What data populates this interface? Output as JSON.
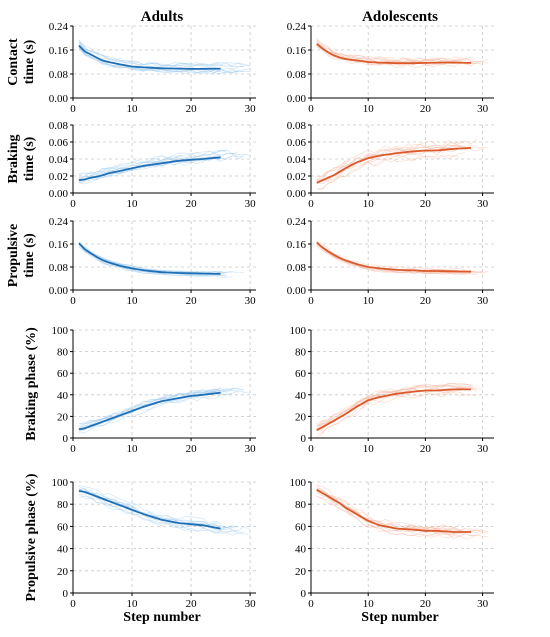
{
  "figure": {
    "columns": [
      "Adults",
      "Adolescents"
    ],
    "xlabel": "Step number",
    "rows": [
      {
        "ylabel_lines": [
          "Contact",
          "time (s)"
        ]
      },
      {
        "ylabel_lines": [
          "Braking",
          "time (s)"
        ]
      },
      {
        "ylabel_lines": [
          "Propulsive",
          "time (s)"
        ]
      },
      {
        "ylabel_lines": [
          "Braking phase (%)"
        ]
      },
      {
        "ylabel_lines": [
          "Propulsive phase (%)"
        ]
      }
    ]
  },
  "colors": {
    "adults_mean": "#1f6fb5",
    "adults_trials": "#9ecbec",
    "adolescents_mean": "#d95a2b",
    "adolescents_trials": "#f4b7a0"
  },
  "chart_data": [
    {
      "type": "line",
      "panel": "contact-adults",
      "xlabel": "",
      "ylabel": "Contact time (s)",
      "xlim": [
        0,
        31
      ],
      "ylim": [
        0,
        0.24
      ],
      "xticks": [
        0,
        10,
        20,
        30
      ],
      "yticks": [
        0.0,
        0.08,
        0.16,
        0.24
      ],
      "tick_decimals": 2,
      "grid": true,
      "x": [
        1,
        2,
        3,
        4,
        5,
        6,
        8,
        10,
        12,
        15,
        18,
        20,
        22,
        25
      ],
      "mean": [
        0.175,
        0.155,
        0.145,
        0.135,
        0.125,
        0.12,
        0.112,
        0.105,
        0.102,
        0.099,
        0.098,
        0.097,
        0.097,
        0.098
      ],
      "spread": 0.018,
      "trial_count": 12,
      "trial_xmax": 30
    },
    {
      "type": "line",
      "panel": "contact-adolescents",
      "xlabel": "",
      "ylabel": "",
      "xlim": [
        0,
        32
      ],
      "ylim": [
        0,
        0.24
      ],
      "xticks": [
        0,
        10,
        20,
        30
      ],
      "yticks": [
        0.0,
        0.08,
        0.16,
        0.24
      ],
      "tick_decimals": 2,
      "grid": true,
      "x": [
        1,
        2,
        3,
        4,
        5,
        6,
        8,
        10,
        12,
        15,
        18,
        20,
        22,
        25,
        28
      ],
      "mean": [
        0.18,
        0.165,
        0.152,
        0.142,
        0.135,
        0.13,
        0.125,
        0.12,
        0.118,
        0.116,
        0.116,
        0.117,
        0.118,
        0.118,
        0.117
      ],
      "spread": 0.02,
      "trial_count": 12,
      "trial_xmax": 31
    },
    {
      "type": "line",
      "panel": "braking-adults",
      "xlabel": "",
      "ylabel": "Braking time (s)",
      "xlim": [
        0,
        31
      ],
      "ylim": [
        0,
        0.08
      ],
      "xticks": [
        0,
        10,
        20,
        30
      ],
      "yticks": [
        0.0,
        0.02,
        0.04,
        0.06,
        0.08
      ],
      "tick_decimals": 2,
      "grid": true,
      "x": [
        1,
        2,
        3,
        4,
        5,
        6,
        8,
        10,
        12,
        15,
        18,
        20,
        22,
        25
      ],
      "mean": [
        0.015,
        0.016,
        0.018,
        0.019,
        0.021,
        0.023,
        0.026,
        0.029,
        0.032,
        0.035,
        0.038,
        0.039,
        0.04,
        0.042
      ],
      "spread": 0.008,
      "trial_count": 12,
      "trial_xmax": 30
    },
    {
      "type": "line",
      "panel": "braking-adolescents",
      "xlabel": "",
      "ylabel": "",
      "xlim": [
        0,
        32
      ],
      "ylim": [
        0,
        0.08
      ],
      "xticks": [
        0,
        10,
        20,
        30
      ],
      "yticks": [
        0.0,
        0.02,
        0.04,
        0.06,
        0.08
      ],
      "tick_decimals": 2,
      "grid": true,
      "x": [
        1,
        2,
        3,
        4,
        5,
        6,
        8,
        10,
        12,
        15,
        18,
        20,
        22,
        25,
        28
      ],
      "mean": [
        0.012,
        0.015,
        0.018,
        0.021,
        0.025,
        0.029,
        0.036,
        0.041,
        0.044,
        0.047,
        0.049,
        0.05,
        0.05,
        0.052,
        0.053
      ],
      "spread": 0.01,
      "trial_count": 12,
      "trial_xmax": 31
    },
    {
      "type": "line",
      "panel": "propulsive-adults",
      "xlabel": "",
      "ylabel": "Propulsive time (s)",
      "xlim": [
        0,
        31
      ],
      "ylim": [
        0,
        0.24
      ],
      "xticks": [
        0,
        10,
        20,
        30
      ],
      "yticks": [
        0.0,
        0.08,
        0.16,
        0.24
      ],
      "tick_decimals": 2,
      "grid": true,
      "x": [
        1,
        2,
        3,
        4,
        5,
        6,
        8,
        10,
        12,
        15,
        18,
        20,
        22,
        25
      ],
      "mean": [
        0.162,
        0.142,
        0.128,
        0.115,
        0.104,
        0.096,
        0.084,
        0.075,
        0.068,
        0.062,
        0.059,
        0.058,
        0.057,
        0.056
      ],
      "spread": 0.012,
      "trial_count": 12,
      "trial_xmax": 30
    },
    {
      "type": "line",
      "panel": "propulsive-adolescents",
      "xlabel": "",
      "ylabel": "",
      "xlim": [
        0,
        32
      ],
      "ylim": [
        0,
        0.24
      ],
      "xticks": [
        0,
        10,
        20,
        30
      ],
      "yticks": [
        0.0,
        0.08,
        0.16,
        0.24
      ],
      "tick_decimals": 2,
      "grid": true,
      "x": [
        1,
        2,
        3,
        4,
        5,
        6,
        8,
        10,
        12,
        15,
        18,
        20,
        22,
        25,
        28
      ],
      "mean": [
        0.165,
        0.148,
        0.134,
        0.122,
        0.112,
        0.103,
        0.09,
        0.08,
        0.075,
        0.07,
        0.068,
        0.066,
        0.066,
        0.065,
        0.064
      ],
      "spread": 0.012,
      "trial_count": 12,
      "trial_xmax": 31
    },
    {
      "type": "line",
      "panel": "braking-phase-adults",
      "xlabel": "",
      "ylabel": "Braking phase (%)",
      "xlim": [
        0,
        31
      ],
      "ylim": [
        0,
        100
      ],
      "xticks": [
        0,
        10,
        20,
        30
      ],
      "yticks": [
        0,
        20,
        40,
        60,
        80,
        100
      ],
      "tick_decimals": 0,
      "grid": true,
      "x": [
        1,
        2,
        3,
        4,
        5,
        6,
        8,
        10,
        12,
        15,
        18,
        20,
        22,
        25
      ],
      "mean": [
        8,
        9,
        11,
        13,
        15,
        17,
        21,
        25,
        29,
        34,
        37,
        39,
        40,
        42
      ],
      "spread": 6,
      "trial_count": 12,
      "trial_xmax": 30
    },
    {
      "type": "line",
      "panel": "braking-phase-adolescents",
      "xlabel": "",
      "ylabel": "",
      "xlim": [
        0,
        32
      ],
      "ylim": [
        0,
        100
      ],
      "xticks": [
        0,
        10,
        20,
        30
      ],
      "yticks": [
        0,
        20,
        40,
        60,
        80,
        100
      ],
      "tick_decimals": 0,
      "grid": true,
      "x": [
        1,
        2,
        3,
        4,
        5,
        6,
        8,
        10,
        12,
        15,
        18,
        20,
        22,
        25,
        28
      ],
      "mean": [
        7,
        10,
        13,
        16,
        19,
        22,
        29,
        35,
        38,
        41,
        43,
        44,
        44,
        45,
        45
      ],
      "spread": 6,
      "trial_count": 12,
      "trial_xmax": 31
    },
    {
      "type": "line",
      "panel": "propulsive-phase-adults",
      "xlabel": "Step number",
      "ylabel": "Propulsive phase (%)",
      "xlim": [
        0,
        31
      ],
      "ylim": [
        0,
        100
      ],
      "xticks": [
        0,
        10,
        20,
        30
      ],
      "yticks": [
        0,
        20,
        40,
        60,
        80,
        100
      ],
      "tick_decimals": 0,
      "grid": true,
      "x": [
        1,
        2,
        3,
        4,
        5,
        6,
        8,
        10,
        12,
        15,
        18,
        20,
        22,
        25
      ],
      "mean": [
        92,
        91,
        89,
        87,
        85,
        83,
        79,
        75,
        71,
        66,
        63,
        62,
        61,
        58
      ],
      "spread": 6,
      "trial_count": 12,
      "trial_xmax": 30
    },
    {
      "type": "line",
      "panel": "propulsive-phase-adolescents",
      "xlabel": "Step number",
      "ylabel": "",
      "xlim": [
        0,
        32
      ],
      "ylim": [
        0,
        100
      ],
      "xticks": [
        0,
        10,
        20,
        30
      ],
      "yticks": [
        0,
        20,
        40,
        60,
        80,
        100
      ],
      "tick_decimals": 0,
      "grid": true,
      "x": [
        1,
        2,
        3,
        4,
        5,
        6,
        8,
        10,
        12,
        15,
        18,
        20,
        22,
        25,
        28
      ],
      "mean": [
        93,
        90,
        87,
        84,
        81,
        77,
        71,
        65,
        61,
        58,
        57,
        56,
        56,
        55,
        55
      ],
      "spread": 6,
      "trial_count": 12,
      "trial_xmax": 31
    }
  ]
}
